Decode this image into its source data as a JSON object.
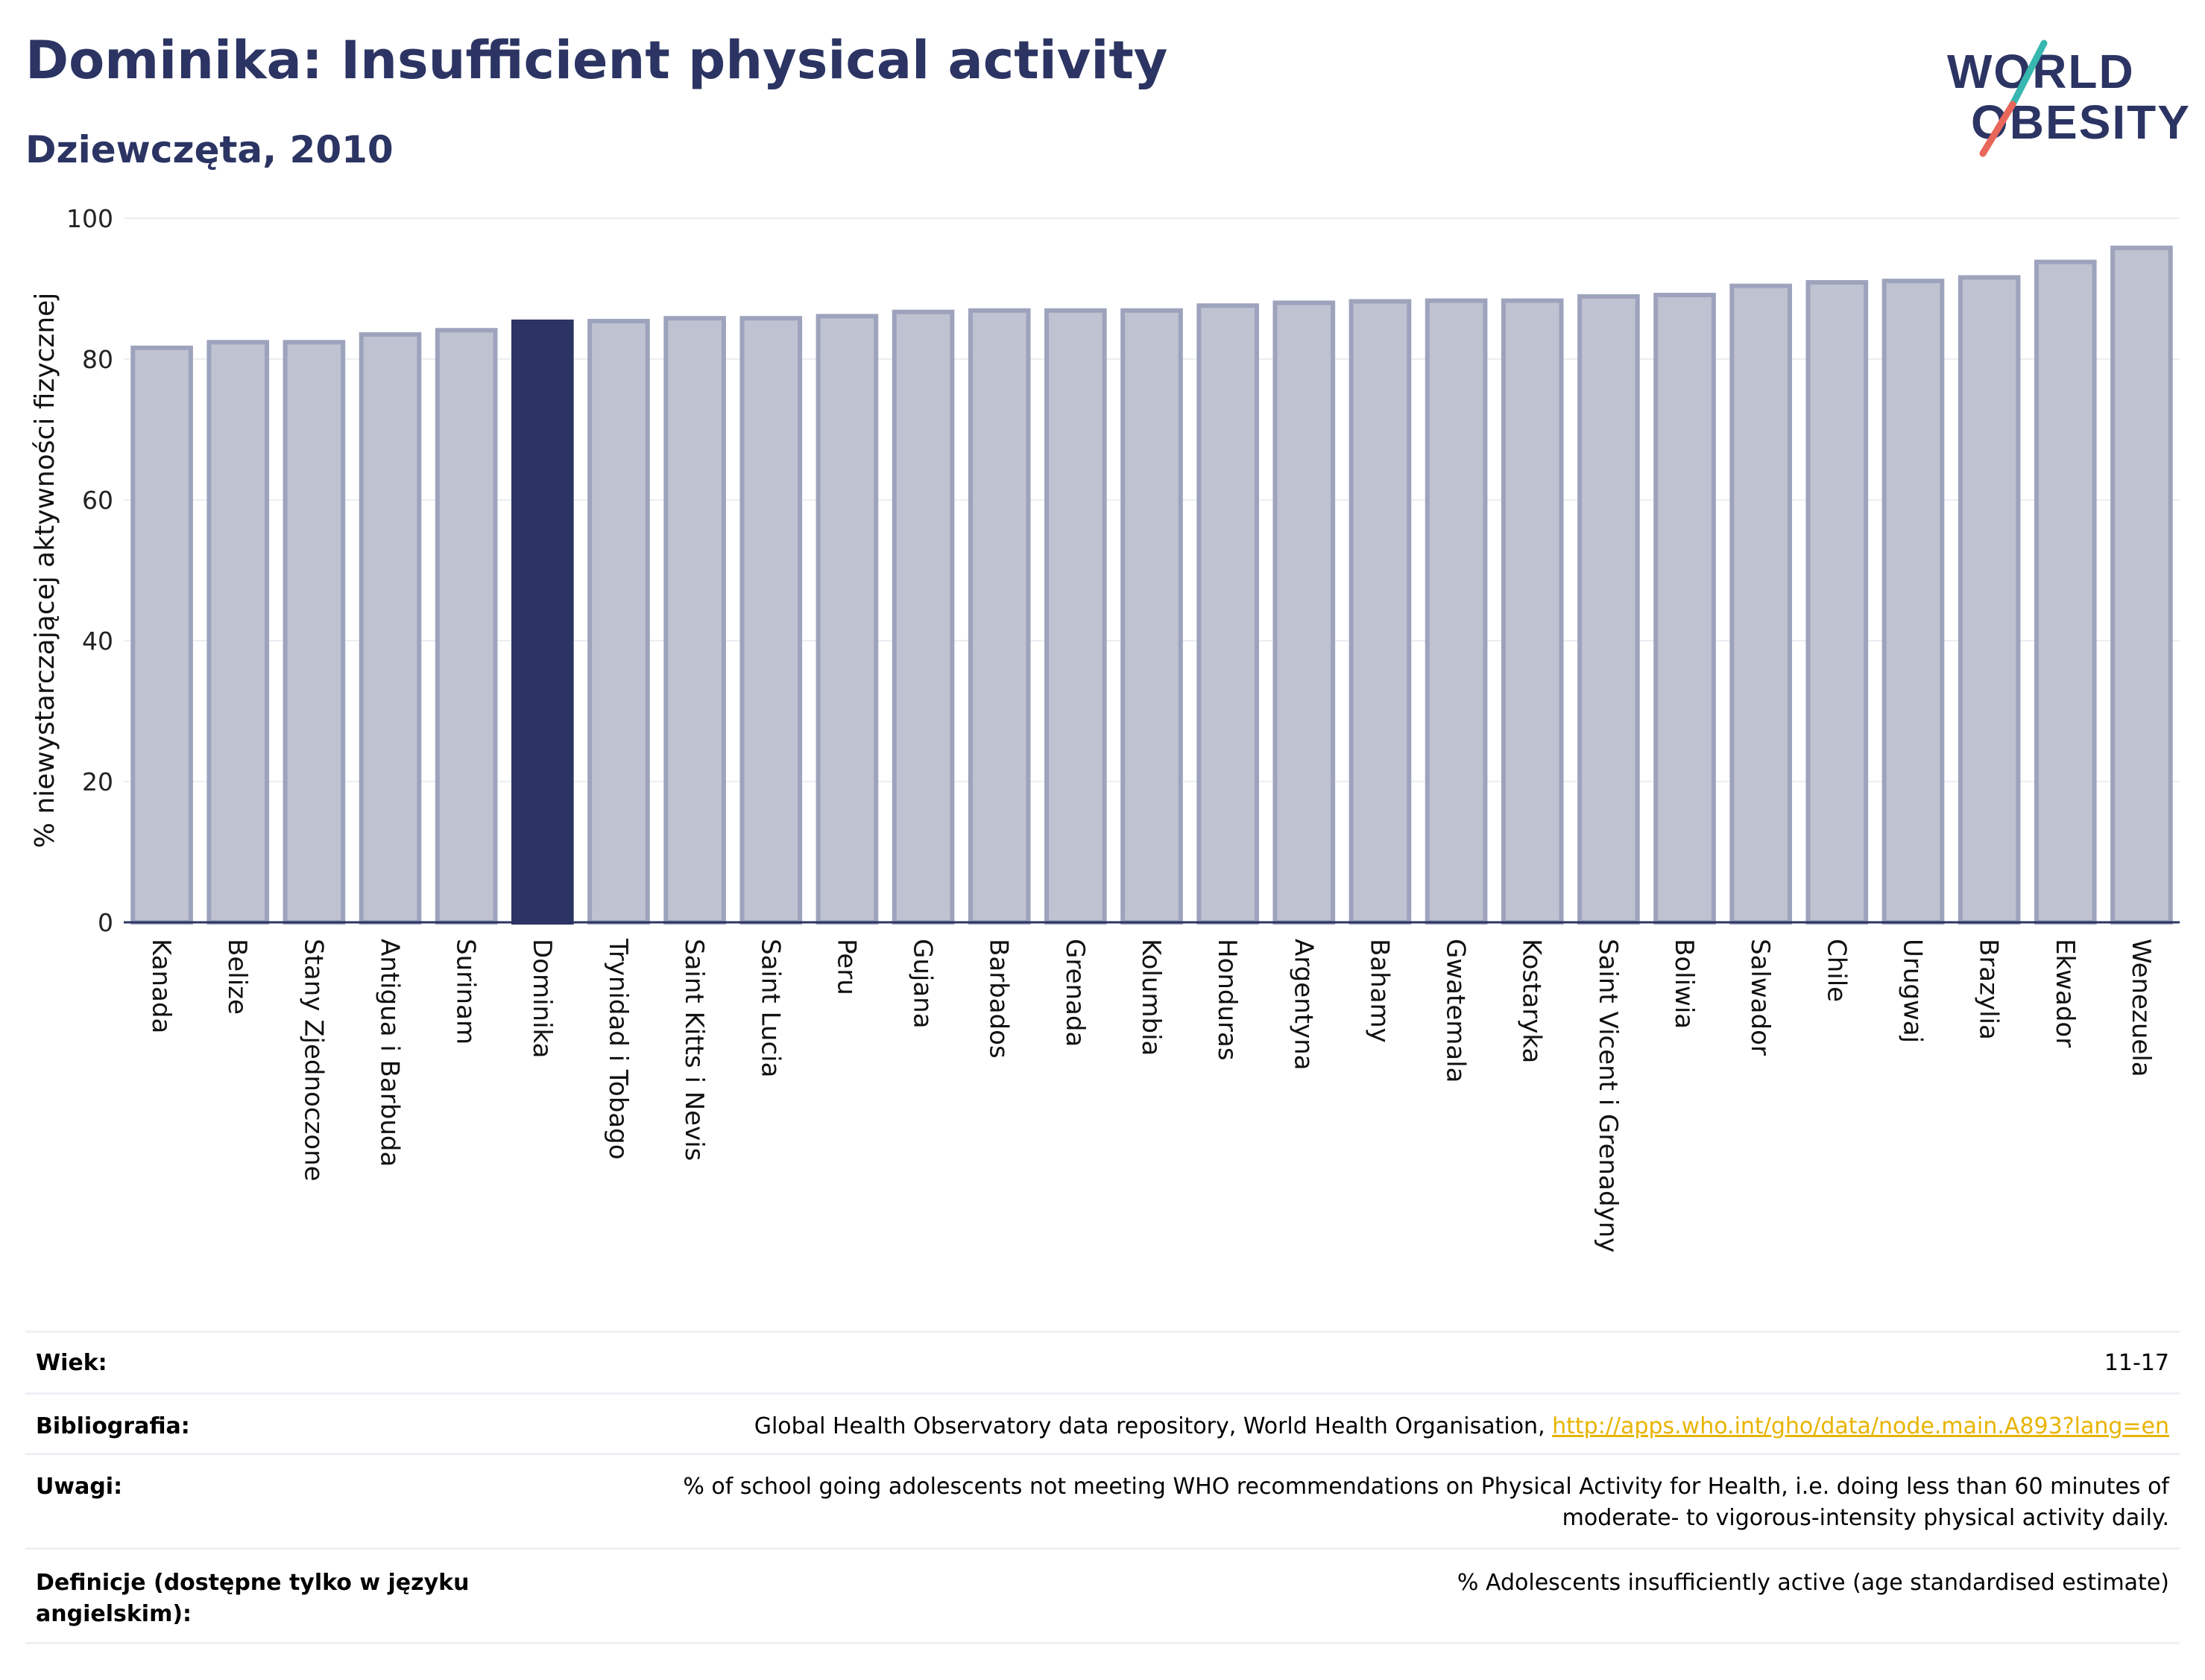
{
  "header": {
    "title": "Dominika: Insufficient physical activity",
    "subtitle": "Dziewczęta, 2010"
  },
  "logo": {
    "line1": "WORLD",
    "line2": "OBESITY",
    "brand_color": "#2b3462",
    "slash_color_top": "#37b7b0",
    "slash_color_bottom": "#e8675a"
  },
  "chart_data": {
    "type": "bar",
    "ylabel": "% niewystarczającej aktywności fizycznej",
    "ylim": [
      0,
      100
    ],
    "yticks": [
      0,
      20,
      40,
      60,
      80,
      100
    ],
    "grid": true,
    "highlight": "Dominika",
    "colors": {
      "bar": "#bfc2d0",
      "bar_edge": "#9ea3bd",
      "highlight": "#2b3462"
    },
    "categories": [
      "Kanada",
      "Belize",
      "Stany Zjednoczone",
      "Antigua i Barbuda",
      "Surinam",
      "Dominika",
      "Trynidad i Tobago",
      "Saint Kitts i Nevis",
      "Saint Lucia",
      "Peru",
      "Gujana",
      "Barbados",
      "Grenada",
      "Kolumbia",
      "Honduras",
      "Argentyna",
      "Bahamy",
      "Gwatemala",
      "Kostaryka",
      "Saint Vicent i Grenadyny",
      "Boliwia",
      "Salwador",
      "Chile",
      "Urugwaj",
      "Brazylia",
      "Ekwador",
      "Wenezuela"
    ],
    "values": [
      81.6,
      82.4,
      82.4,
      83.5,
      84.1,
      85.3,
      85.4,
      85.8,
      85.8,
      86.1,
      86.7,
      86.9,
      86.9,
      86.9,
      87.6,
      88.0,
      88.2,
      88.3,
      88.3,
      88.9,
      89.1,
      90.4,
      90.9,
      91.1,
      91.6,
      93.8,
      95.8
    ]
  },
  "meta": {
    "age": {
      "label": "Wiek:",
      "value": "11-17"
    },
    "bibliography": {
      "label": "Bibliografia:",
      "value": "Global Health Observatory data repository, World Health Organisation, ",
      "link": "http://apps.who.int/gho/data/node.main.A893?lang=en"
    },
    "notes": {
      "label": "Uwagi:",
      "value_line1": "% of school going adolescents not meeting WHO recommendations on Physical Activity for Health, i.e. doing less than 60 minutes of",
      "value_line2": "moderate- to vigorous-intensity physical activity daily."
    },
    "definitions": {
      "label_line1": "Definicje (dostępne tylko w języku",
      "label_line2": "angielskim):",
      "value": "% Adolescents insufficiently active (age standardised estimate)"
    }
  }
}
